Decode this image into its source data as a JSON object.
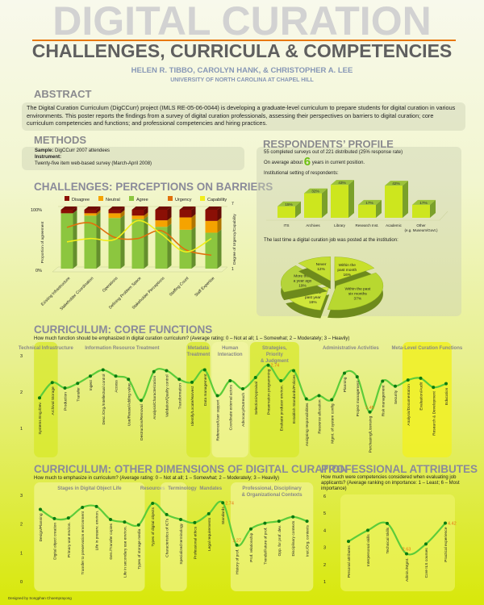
{
  "header": {
    "title": "DIGITAL CURATION",
    "subtitle": "CHALLENGES, CURRICULA & COMPETENCIES",
    "authors": "HELEN R. TIBBO, CAROLYN HANK, & CHRISTOPHER A. LEE",
    "university": "UNIVERSITY OF NORTH CAROLINA AT CHAPEL HILL"
  },
  "abstract": {
    "heading": "ABSTRACT",
    "text": "The Digital Curation Curriculum (DigCCurr) project (IMLS RE-05-06-0044) is developing a graduate-level curriculum to prepare students for digital curation in various environments. This poster reports the findings from a survey of digital curation professionals, assessing their perspectives on barriers to digital curation; core curriculum competencies and functions; and professional competencies and hiring practices."
  },
  "methods": {
    "heading": "METHODS",
    "sample_label": "Sample:",
    "sample": "DigCCurr 2007 attendees",
    "instrument_label": "Instrument:",
    "instrument": "Twenty-five item web-based survey (March-April 2008)"
  },
  "respondents": {
    "heading": "RESPONDENTS’ PROFILE",
    "line1": "55 completed surveys out of 221 distributed (25% response rate)",
    "line2_pre": "On average about",
    "years": "6",
    "line2_post": "years in current position.",
    "setting_label": "Institutional setting of respondents:",
    "job_label": "The last time a digital curation job was posted at the institution:"
  },
  "colors": {
    "disagree": "#8b0f05",
    "neutral": "#f5a300",
    "agree": "#8cc63f",
    "urgency": "#e0700c",
    "capability": "#f2ee1a",
    "curve": "#5ccc3a",
    "point": "#0a7a10",
    "highlight": "#e0ee28",
    "accent_label": "#e87010"
  },
  "core": {
    "heading": "CURRICULUM: CORE FUNCTIONS",
    "question": "How much function should be emphasized in digital curation curriculum? (Average rating: 0 – Not at all; 1 – Somewhat; 2 – Moderately; 3 – Heavily)"
  },
  "other": {
    "heading": "CURRICULUM: OTHER DIMENSIONS OF DIGITAL CURATION",
    "question": "How much to emphasize in curriculum? (Average rating: 0 – Not at all; 1 – Somewhat; 2 – Moderately; 3 – Heavily)"
  },
  "attributes": {
    "heading": "PROFESSIONAL ATTRIBUTES",
    "question": "How much were competencies considered when evaluating job applicants? (Average ranking on importance: 1 – Least; 6 – Most importance)"
  },
  "barriers_heading": "CHALLENGES: PERCEPTIONS ON BARRIERS",
  "footer": "Designed by Songphan Choemprayong",
  "chart_data": [
    {
      "id": "barriers",
      "type": "bar",
      "stacked": true,
      "title": "",
      "categories": [
        "Existing Infrastructure",
        "Stakeholder Coordination",
        "Operations",
        "Defining Problem Space",
        "Stakeholder Perceptions",
        "Staffing Count",
        "Staff Expertise"
      ],
      "series": [
        {
          "name": "Agree",
          "values": [
            94,
            90,
            86,
            84,
            71,
            66,
            61
          ]
        },
        {
          "name": "Neutral",
          "values": [
            0,
            4,
            8,
            6,
            11,
            21,
            20
          ]
        },
        {
          "name": "Disagree",
          "values": [
            6,
            6,
            6,
            10,
            18,
            13,
            19
          ]
        }
      ],
      "line_series": [
        {
          "name": "Urgency",
          "values": [
            4.7,
            5.1,
            3.8,
            3.7,
            4.4,
            2.7,
            2.2
          ]
        },
        {
          "name": "Capability",
          "values": [
            3.4,
            3.7,
            3.6,
            5.3,
            4.1,
            2.5,
            3.7
          ]
        }
      ],
      "ylabel": "Proportion of agreement",
      "y2label": "Degree of Urgency/Capability",
      "yticks": [
        "0%",
        "100%"
      ],
      "y2ticks": [
        "1",
        "7"
      ],
      "ylim": [
        0,
        100
      ],
      "y2lim": [
        1,
        7
      ],
      "legend": "top"
    },
    {
      "id": "setting",
      "type": "bar",
      "categories": [
        "ITS",
        "Archives",
        "Library",
        "Research Inst.",
        "Academic",
        "Other (e.g. Museum/Govt.)"
      ],
      "values": [
        15,
        32,
        43,
        17,
        42,
        17
      ],
      "labels": [
        "15%",
        "32%",
        "43%",
        "17%",
        "42%",
        "17%"
      ]
    },
    {
      "id": "job_posted",
      "type": "pie",
      "categories": [
        "Within the past month",
        "Within the past six months",
        "Within the past year",
        "More than a year ago",
        "Never"
      ],
      "values": [
        16,
        37,
        16,
        19,
        12
      ],
      "labels": [
        "16%",
        "37%",
        "16%",
        "19%",
        "12%"
      ]
    },
    {
      "id": "core_functions",
      "type": "line",
      "ylim": [
        0,
        3
      ],
      "yticks": [
        "1",
        "2",
        "3"
      ],
      "groups": [
        {
          "name": "Technical Infrastructure",
          "count": 2,
          "highlight": "green"
        },
        {
          "name": "Information Resource Treatment",
          "count": 10,
          "highlight": "none"
        },
        {
          "name": "Metadata Treatment",
          "count": 2,
          "highlight": "green"
        },
        {
          "name": "Human Interaction",
          "count": 3,
          "highlight": "light"
        },
        {
          "name": "Strategies, Priority & Judgment",
          "count": 4,
          "highlight": "green"
        },
        {
          "name": "Administrative Activities",
          "count": 8,
          "highlight": "none"
        },
        {
          "name": "Meta-Level Curation Functions",
          "count": 4,
          "highlight": "yellow"
        }
      ],
      "categories": [
        "Systems Eng./Dev.",
        "Archival Storage",
        "Production",
        "Transfer",
        "Ingest",
        "Desc./Org./Intellectual control",
        "Access",
        "Use/Reuse/Adding value",
        "Destruction/Removal",
        "Analysis/Characterization",
        "Validation/Quality control",
        "Transformation",
        "Identify/Locate/Harvest",
        "Data management",
        "Reference/User support",
        "Coordinate external actors",
        "Advocacy/Outreach",
        "Selection/Appraisal",
        "Preservation programming",
        "Evaluate producer environ.",
        "Establish Standards/Policies",
        "Assigning responsibilities",
        "Resource allocation",
        "Mgmt. of system config",
        "Planning",
        "Project management",
        "Purchasing/Licensing",
        "Risk management",
        "Security",
        "Analysis/Documentation",
        "Evaluation/Audit",
        "Research & Development",
        "Education"
      ],
      "values": [
        1.84,
        2.26,
        2.11,
        2.24,
        2.44,
        2.61,
        2.44,
        2.35,
        1.77,
        2.56,
        2.59,
        2.35,
        2.27,
        2.61,
        1.9,
        2.31,
        2.09,
        2.4,
        2.74,
        2.31,
        2.59,
        1.81,
        1.9,
        1.79,
        2.52,
        2.42,
        1.45,
        2.3,
        2.16,
        2.33,
        2.38,
        2.13,
        2.23
      ],
      "annotations": [
        {
          "index": 18,
          "label": "2.74"
        },
        {
          "index": 26,
          "label": "1.45"
        }
      ]
    },
    {
      "id": "other_dimensions",
      "type": "line",
      "ylim": [
        0,
        3
      ],
      "yticks": [
        "0",
        "1",
        "2",
        "3"
      ],
      "groups": [
        {
          "name": "Stages in Digital Object Life",
          "count": 8,
          "highlight": "light"
        },
        {
          "name": "Resources",
          "count": 1,
          "highlight": "none"
        },
        {
          "name": "Terminology",
          "count": 2,
          "highlight": "light"
        },
        {
          "name": "Mandates",
          "count": 3,
          "highlight": "none"
        },
        {
          "name": "Professional, Disciplinary & Organizational Contexts",
          "count": 6,
          "highlight": "light"
        }
      ],
      "categories": [
        "Design/Planning",
        "Digital object creation",
        "Primary use environ.",
        "Transfer to preservation environment",
        "Life in preserv. environ.",
        "Gen./Transfer copies",
        "Life in secondary use environ.",
        "Types of storage media",
        "Types of digital objects",
        "Characteristics of ICTs",
        "Specialized terminology",
        "Professional ethics",
        "Legal requirements",
        "Standards",
        "History of prof.",
        "Prof. relationship",
        "Trends/Future of prof.",
        "Opp. for prof. dev.",
        "Disciplinary contexts",
        "Inst./Org. contexts"
      ],
      "values": [
        2.51,
        2.19,
        2.21,
        2.58,
        2.61,
        2.16,
        2.07,
        1.97,
        2.72,
        2.33,
        2.16,
        2.05,
        2.36,
        2.74,
        1.27,
        1.83,
        2.03,
        2.1,
        2.25,
        2.1
      ],
      "annotations": [
        {
          "index": 13,
          "label": "2.74"
        },
        {
          "index": 14,
          "label": "1.27"
        }
      ]
    },
    {
      "id": "professional_attributes",
      "type": "line",
      "ylim": [
        1,
        6
      ],
      "yticks": [
        "1",
        "2",
        "3",
        "4",
        "5",
        "6"
      ],
      "categories": [
        "Personal attributes",
        "Interpersonal skills",
        "Technical Skills",
        "Admin./Mgmt.",
        "Core ILS courses",
        "Practical experience"
      ],
      "values": [
        3.35,
        4.0,
        4.4,
        2.63,
        3.2,
        4.42
      ],
      "annotations": [
        {
          "index": 3,
          "label": "2.63"
        },
        {
          "index": 5,
          "label": "4.42"
        }
      ]
    }
  ]
}
